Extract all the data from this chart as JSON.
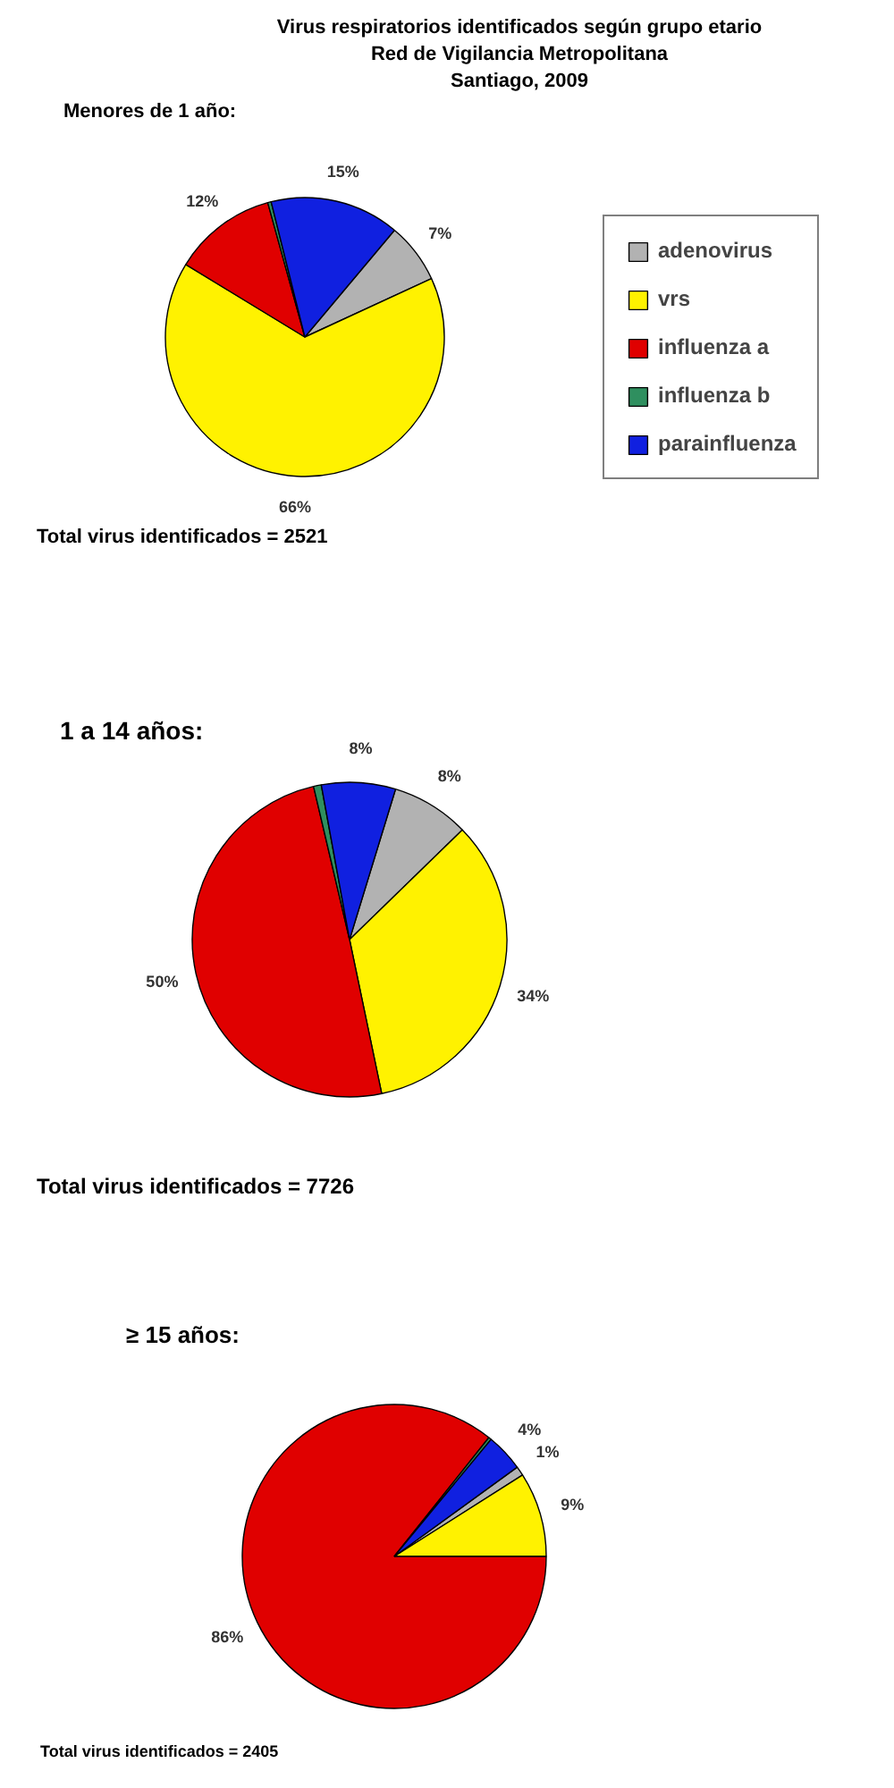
{
  "chart_data": [
    {
      "type": "pie",
      "title": "Virus respiratorios identificados según grupo etario\nRed de Vigilancia Metropolitana\nSantiago, 2009",
      "subtitle": "Menores de 1 año:",
      "categories": [
        "adenovirus",
        "vrs",
        "influenza a",
        "influenza b",
        "parainfluenza"
      ],
      "values": [
        7,
        65.6,
        12,
        0.4,
        15
      ],
      "colors": [
        "#b2b2b2",
        "#fff200",
        "#e00000",
        "#2f8f5f",
        "#1020e0"
      ],
      "value_labels": [
        "7%",
        "66%",
        "12%",
        null,
        "15%"
      ],
      "legend": "right",
      "annotations": [
        "Total virus identificados = 2521"
      ]
    },
    {
      "type": "pie",
      "subtitle": "1 a 14 años:",
      "categories": [
        null,
        null,
        null,
        null,
        null
      ],
      "values": [
        8,
        34,
        49.6,
        0.8,
        7.6
      ],
      "colors": [
        "#b2b2b2",
        "#fff200",
        "#e00000",
        "#2f8f5f",
        "#1020e0"
      ],
      "value_labels": [
        "8%",
        "34%",
        "50%",
        null,
        "8%"
      ],
      "annotations": [
        "Total virus identificados = 7726"
      ]
    },
    {
      "type": "pie",
      "subtitle": "≥ 15 años:",
      "categories": [
        null,
        null,
        null,
        null,
        null
      ],
      "values": [
        1,
        9,
        85.7,
        0.3,
        4
      ],
      "colors": [
        "#b2b2b2",
        "#fff200",
        "#e00000",
        "#2f8f5f",
        "#1020e0"
      ],
      "value_labels": [
        "1%",
        "9%",
        "86%",
        null,
        "4%"
      ],
      "annotations": [
        "Total virus identificados = 2405"
      ]
    }
  ]
}
